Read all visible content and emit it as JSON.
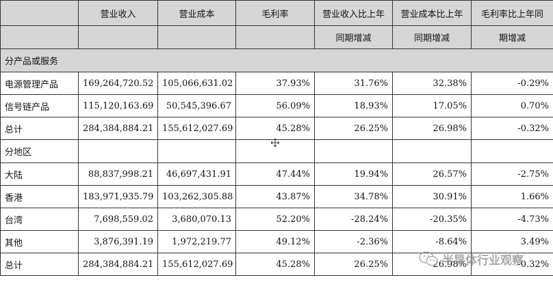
{
  "header": {
    "col_revenue": "营业收入",
    "col_cost": "营业成本",
    "col_margin": "毛利率",
    "col_rev_yoy": "营业收入比上年",
    "col_cost_yoy": "营业成本比上年",
    "col_margin_yoy": "毛利率比上年同",
    "sub_rev_yoy": "同期增减",
    "sub_cost_yoy": "同期增减",
    "sub_margin_yoy": "期增减"
  },
  "sections": {
    "by_product": "分产品或服务",
    "by_region": "分地区"
  },
  "product_rows": [
    {
      "name": "电源管理产品",
      "revenue": "169,264,720.52",
      "cost": "105,066,631.02",
      "margin": "37.93%",
      "rev_yoy": "31.76%",
      "cost_yoy": "32.38%",
      "margin_yoy": "-0.29%"
    },
    {
      "name": "信号链产品",
      "revenue": "115,120,163.69",
      "cost": "50,545,396.67",
      "margin": "56.09%",
      "rev_yoy": "18.93%",
      "cost_yoy": "17.05%",
      "margin_yoy": "0.70%"
    },
    {
      "name": "总计",
      "revenue": "284,384,884.21",
      "cost": "155,612,027.69",
      "margin": "45.28%",
      "rev_yoy": "26.25%",
      "cost_yoy": "26.98%",
      "margin_yoy": "-0.32%"
    }
  ],
  "region_rows": [
    {
      "name": "大陆",
      "revenue": "88,837,998.21",
      "cost": "46,697,431.91",
      "margin": "47.44%",
      "rev_yoy": "19.94%",
      "cost_yoy": "26.57%",
      "margin_yoy": "-2.75%"
    },
    {
      "name": "香港",
      "revenue": "183,971,935.79",
      "cost": "103,262,305.88",
      "margin": "43.87%",
      "rev_yoy": "34.78%",
      "cost_yoy": "30.91%",
      "margin_yoy": "1.66%"
    },
    {
      "name": "台湾",
      "revenue": "7,698,559.02",
      "cost": "3,680,070.13",
      "margin": "52.20%",
      "rev_yoy": "-28.24%",
      "cost_yoy": "-20.35%",
      "margin_yoy": "-4.73%"
    },
    {
      "name": "其他",
      "revenue": "3,876,391.19",
      "cost": "1,972,219.77",
      "margin": "49.12%",
      "rev_yoy": "-2.36%",
      "cost_yoy": "-8.64%",
      "margin_yoy": "3.49%"
    },
    {
      "name": "总计",
      "revenue": "284,384,884.21",
      "cost": "155,612,027.69",
      "margin": "45.28%",
      "rev_yoy": "26.25%",
      "cost_yoy": "26.98%",
      "margin_yoy": "-0.32%"
    }
  ],
  "watermark": {
    "text": "半导体行业观察",
    "icon": "wechat-icon"
  }
}
